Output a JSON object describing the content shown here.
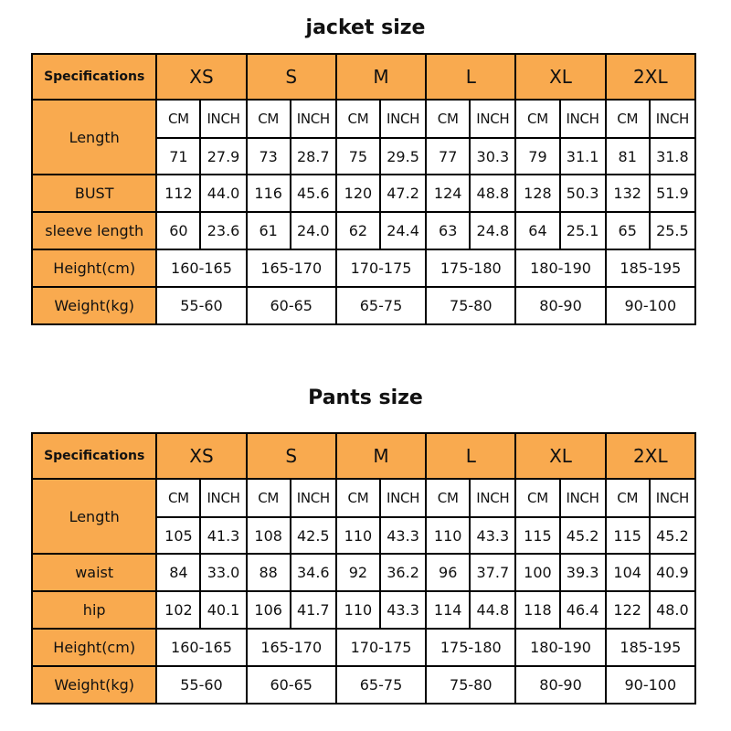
{
  "accent_color": "#f9aa4f",
  "tables": [
    {
      "title": "jacket size",
      "spec_label": "Specifications",
      "sizes": [
        "XS",
        "S",
        "M",
        "L",
        "XL",
        "2XL"
      ],
      "units": [
        "CM",
        "INCH"
      ],
      "length_label": "Length",
      "length": [
        [
          "71",
          "27.9"
        ],
        [
          "73",
          "28.7"
        ],
        [
          "75",
          "29.5"
        ],
        [
          "77",
          "30.3"
        ],
        [
          "79",
          "31.1"
        ],
        [
          "81",
          "31.8"
        ]
      ],
      "measures": [
        {
          "label": "BUST",
          "values": [
            [
              "112",
              "44.0"
            ],
            [
              "116",
              "45.6"
            ],
            [
              "120",
              "47.2"
            ],
            [
              "124",
              "48.8"
            ],
            [
              "128",
              "50.3"
            ],
            [
              "132",
              "51.9"
            ]
          ]
        },
        {
          "label": "sleeve length",
          "values": [
            [
              "60",
              "23.6"
            ],
            [
              "61",
              "24.0"
            ],
            [
              "62",
              "24.4"
            ],
            [
              "63",
              "24.8"
            ],
            [
              "64",
              "25.1"
            ],
            [
              "65",
              "25.5"
            ]
          ]
        }
      ],
      "ranges": [
        {
          "label": "Height(cm)",
          "values": [
            "160-165",
            "165-170",
            "170-175",
            "175-180",
            "180-190",
            "185-195"
          ]
        },
        {
          "label": "Weight(kg)",
          "values": [
            "55-60",
            "60-65",
            "65-75",
            "75-80",
            "80-90",
            "90-100"
          ]
        }
      ]
    },
    {
      "title": "Pants size",
      "spec_label": "Specifications",
      "sizes": [
        "XS",
        "S",
        "M",
        "L",
        "XL",
        "2XL"
      ],
      "units": [
        "CM",
        "INCH"
      ],
      "length_label": "Length",
      "length": [
        [
          "105",
          "41.3"
        ],
        [
          "108",
          "42.5"
        ],
        [
          "110",
          "43.3"
        ],
        [
          "110",
          "43.3"
        ],
        [
          "115",
          "45.2"
        ],
        [
          "115",
          "45.2"
        ]
      ],
      "measures": [
        {
          "label": "waist",
          "values": [
            [
              "84",
              "33.0"
            ],
            [
              "88",
              "34.6"
            ],
            [
              "92",
              "36.2"
            ],
            [
              "96",
              "37.7"
            ],
            [
              "100",
              "39.3"
            ],
            [
              "104",
              "40.9"
            ]
          ]
        },
        {
          "label": "hip",
          "values": [
            [
              "102",
              "40.1"
            ],
            [
              "106",
              "41.7"
            ],
            [
              "110",
              "43.3"
            ],
            [
              "114",
              "44.8"
            ],
            [
              "118",
              "46.4"
            ],
            [
              "122",
              "48.0"
            ]
          ]
        }
      ],
      "ranges": [
        {
          "label": "Height(cm)",
          "values": [
            "160-165",
            "165-170",
            "170-175",
            "175-180",
            "180-190",
            "185-195"
          ]
        },
        {
          "label": "Weight(kg)",
          "values": [
            "55-60",
            "60-65",
            "65-75",
            "75-80",
            "80-90",
            "90-100"
          ]
        }
      ]
    }
  ]
}
